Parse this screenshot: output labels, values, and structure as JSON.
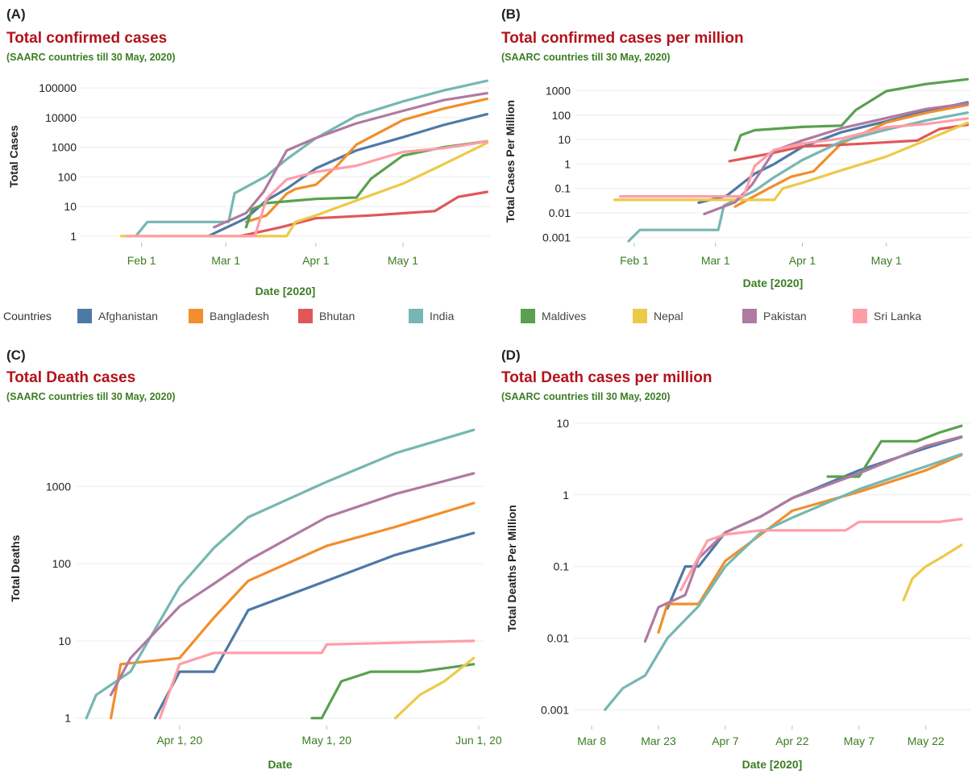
{
  "legend": {
    "title": "Countries",
    "items": [
      {
        "name": "Afghanistan",
        "color": "#4e79a7"
      },
      {
        "name": "Bangladesh",
        "color": "#f28e2b"
      },
      {
        "name": "Bhutan",
        "color": "#e15759"
      },
      {
        "name": "India",
        "color": "#76b7b2"
      },
      {
        "name": "Maldives",
        "color": "#59a14f"
      },
      {
        "name": "Nepal",
        "color": "#edc948"
      },
      {
        "name": "Pakistan",
        "color": "#b07aa1"
      },
      {
        "name": "Sri Lanka",
        "color": "#ff9da7"
      }
    ]
  },
  "panels": [
    {
      "label": "(A)",
      "title": "Total confirmed cases",
      "subtitle": "(SAARC countries till 30 May, 2020)"
    },
    {
      "label": "(B)",
      "title": "Total confirmed cases per million",
      "subtitle": "(SAARC countries till 30 May, 2020)"
    },
    {
      "label": "(C)",
      "title": "Total Death cases",
      "subtitle": "(SAARC countries till 30 May, 2020)"
    },
    {
      "label": "(D)",
      "title": "Total Death cases per million",
      "subtitle": "(SAARC countries till 30 May, 2020)"
    }
  ],
  "chart_data": [
    {
      "type": "line",
      "title": "Total confirmed cases",
      "subtitle": "(SAARC countries till 30 May, 2020)",
      "xlabel": "Date [2020]",
      "ylabel": "Total Cases",
      "yscale": "log",
      "xlim": [
        "2020-01-11",
        "2020-05-31"
      ],
      "ylim": [
        0.6,
        200000
      ],
      "x_ticks": [
        {
          "date": "2020-02-01",
          "label": "Feb 1"
        },
        {
          "date": "2020-03-01",
          "label": "Mar 1"
        },
        {
          "date": "2020-04-01",
          "label": "Apr 1"
        },
        {
          "date": "2020-05-01",
          "label": "May 1"
        }
      ],
      "y_ticks": [
        {
          "value": 1,
          "label": "1"
        },
        {
          "value": 10,
          "label": "10"
        },
        {
          "value": 100,
          "label": "100"
        },
        {
          "value": 1000,
          "label": "1000"
        },
        {
          "value": 10000,
          "label": "10000"
        },
        {
          "value": 100000,
          "label": "100000"
        }
      ],
      "series": [
        {
          "name": "Afghanistan",
          "x": [
            "2020-02-24",
            "2020-03-08",
            "2020-03-15",
            "2020-03-22",
            "2020-04-01",
            "2020-04-15",
            "2020-05-01",
            "2020-05-15",
            "2020-05-30"
          ],
          "y": [
            1,
            4,
            16,
            40,
            192,
            784,
            2171,
            5639,
            13036
          ]
        },
        {
          "name": "Bangladesh",
          "x": [
            "2020-03-08",
            "2020-03-15",
            "2020-03-22",
            "2020-03-25",
            "2020-04-01",
            "2020-04-08",
            "2020-04-15",
            "2020-05-01",
            "2020-05-15",
            "2020-05-30"
          ],
          "y": [
            3,
            5,
            27,
            39,
            54,
            218,
            1231,
            8238,
            20065,
            42844
          ]
        },
        {
          "name": "Bhutan",
          "x": [
            "2020-03-06",
            "2020-03-20",
            "2020-04-01",
            "2020-04-20",
            "2020-05-12",
            "2020-05-20",
            "2020-05-30"
          ],
          "y": [
            1,
            2,
            4,
            5,
            7,
            21,
            31
          ]
        },
        {
          "name": "India",
          "x": [
            "2020-01-30",
            "2020-02-03",
            "2020-03-02",
            "2020-03-04",
            "2020-03-15",
            "2020-03-22",
            "2020-04-01",
            "2020-04-15",
            "2020-05-01",
            "2020-05-15",
            "2020-05-30"
          ],
          "y": [
            1,
            3,
            3,
            28,
            107,
            396,
            1998,
            11439,
            35043,
            81970,
            173763
          ]
        },
        {
          "name": "Maldives",
          "x": [
            "2020-03-08",
            "2020-03-10",
            "2020-03-15",
            "2020-04-01",
            "2020-04-15",
            "2020-04-20",
            "2020-05-01",
            "2020-05-15",
            "2020-05-30"
          ],
          "y": [
            2,
            8,
            13,
            18,
            20,
            86,
            519,
            1001,
            1591
          ]
        },
        {
          "name": "Nepal",
          "x": [
            "2020-01-25",
            "2020-03-22",
            "2020-03-25",
            "2020-04-01",
            "2020-04-15",
            "2020-05-01",
            "2020-05-15",
            "2020-05-30"
          ],
          "y": [
            1,
            1,
            3,
            5,
            16,
            59,
            267,
            1401
          ]
        },
        {
          "name": "Pakistan",
          "x": [
            "2020-02-26",
            "2020-03-08",
            "2020-03-14",
            "2020-03-22",
            "2020-04-01",
            "2020-04-15",
            "2020-05-01",
            "2020-05-15",
            "2020-05-30"
          ],
          "y": [
            2,
            6,
            31,
            776,
            2039,
            6383,
            16817,
            38799,
            66457
          ]
        },
        {
          "name": "Sri Lanka",
          "x": [
            "2020-01-27",
            "2020-03-11",
            "2020-03-15",
            "2020-03-22",
            "2020-04-01",
            "2020-04-15",
            "2020-05-01",
            "2020-05-15",
            "2020-05-30"
          ],
          "y": [
            1,
            1,
            18,
            82,
            146,
            238,
            690,
            925,
            1558
          ]
        }
      ]
    },
    {
      "type": "line",
      "title": "Total confirmed cases per million",
      "subtitle": "(SAARC countries till 30 May, 2020)",
      "xlabel": "Date [2020]",
      "ylabel": "Total Cases Per Million",
      "yscale": "log",
      "xlim": [
        "2020-01-11",
        "2020-05-31"
      ],
      "ylim": [
        0.0006,
        3000
      ],
      "x_ticks": [
        {
          "date": "2020-02-01",
          "label": "Feb 1"
        },
        {
          "date": "2020-03-01",
          "label": "Mar 1"
        },
        {
          "date": "2020-04-01",
          "label": "Apr 1"
        },
        {
          "date": "2020-05-01",
          "label": "May 1"
        }
      ],
      "y_ticks": [
        {
          "value": 0.001,
          "label": "0.001"
        },
        {
          "value": 0.01,
          "label": "0.01"
        },
        {
          "value": 0.1,
          "label": "0.1"
        },
        {
          "value": 1,
          "label": "1"
        },
        {
          "value": 10,
          "label": "10"
        },
        {
          "value": 100,
          "label": "100"
        },
        {
          "value": 1000,
          "label": "1000"
        }
      ],
      "series": [
        {
          "name": "Afghanistan",
          "x": [
            "2020-02-24",
            "2020-03-05",
            "2020-03-15",
            "2020-03-22",
            "2020-04-01",
            "2020-04-15",
            "2020-05-01",
            "2020-05-15",
            "2020-05-30"
          ],
          "y": [
            0.026,
            0.05,
            0.4,
            1.0,
            5,
            20,
            56,
            145,
            335
          ]
        },
        {
          "name": "Bangladesh",
          "x": [
            "2020-03-08",
            "2020-03-20",
            "2020-03-28",
            "2020-04-05",
            "2020-04-15",
            "2020-05-01",
            "2020-05-15",
            "2020-05-30"
          ],
          "y": [
            0.018,
            0.1,
            0.3,
            0.5,
            7,
            50,
            122,
            260
          ]
        },
        {
          "name": "Bhutan",
          "x": [
            "2020-03-06",
            "2020-03-20",
            "2020-04-01",
            "2020-04-20",
            "2020-05-12",
            "2020-05-20",
            "2020-05-30"
          ],
          "y": [
            1.3,
            2.6,
            5.2,
            6.5,
            9.1,
            27,
            40
          ]
        },
        {
          "name": "India",
          "x": [
            "2020-01-30",
            "2020-02-03",
            "2020-03-02",
            "2020-03-04",
            "2020-03-15",
            "2020-03-22",
            "2020-04-01",
            "2020-04-15",
            "2020-05-01",
            "2020-05-15",
            "2020-05-30"
          ],
          "y": [
            0.0007,
            0.002,
            0.002,
            0.02,
            0.08,
            0.29,
            1.45,
            8.3,
            25.4,
            59.4,
            126
          ]
        },
        {
          "name": "Maldives",
          "x": [
            "2020-03-08",
            "2020-03-10",
            "2020-03-15",
            "2020-04-01",
            "2020-04-15",
            "2020-04-20",
            "2020-05-01",
            "2020-05-15",
            "2020-05-30"
          ],
          "y": [
            3.7,
            15,
            24,
            33,
            37,
            159,
            960,
            1852,
            2943
          ]
        },
        {
          "name": "Nepal",
          "x": [
            "2020-01-25",
            "2020-03-22",
            "2020-03-25",
            "2020-04-01",
            "2020-04-15",
            "2020-05-01",
            "2020-05-15",
            "2020-05-30"
          ],
          "y": [
            0.034,
            0.034,
            0.1,
            0.17,
            0.55,
            2,
            9.2,
            48
          ]
        },
        {
          "name": "Pakistan",
          "x": [
            "2020-02-26",
            "2020-03-08",
            "2020-03-14",
            "2020-03-22",
            "2020-04-01",
            "2020-04-15",
            "2020-05-01",
            "2020-05-15",
            "2020-05-30"
          ],
          "y": [
            0.009,
            0.027,
            0.14,
            3.5,
            9.2,
            29,
            76,
            176,
            301
          ]
        },
        {
          "name": "Sri Lanka",
          "x": [
            "2020-01-27",
            "2020-03-11",
            "2020-03-15",
            "2020-03-22",
            "2020-04-01",
            "2020-04-15",
            "2020-05-01",
            "2020-05-15",
            "2020-05-30"
          ],
          "y": [
            0.047,
            0.047,
            0.84,
            3.8,
            6.8,
            11,
            32,
            43,
            73
          ]
        }
      ]
    },
    {
      "type": "line",
      "title": "Total Death cases",
      "subtitle": "(SAARC countries till 30 May, 2020)",
      "xlabel": "Date",
      "ylabel": "Total Deaths",
      "yscale": "log",
      "xlim": [
        "2020-03-11",
        "2020-06-02"
      ],
      "ylim": [
        0.8,
        9000
      ],
      "x_ticks": [
        {
          "date": "2020-04-01",
          "label": "Apr 1, 20"
        },
        {
          "date": "2020-05-01",
          "label": "May 1, 20"
        },
        {
          "date": "2020-06-01",
          "label": "Jun 1, 20"
        }
      ],
      "y_ticks": [
        {
          "value": 1,
          "label": "1"
        },
        {
          "value": 10,
          "label": "10"
        },
        {
          "value": 100,
          "label": "100"
        },
        {
          "value": 1000,
          "label": "1000"
        }
      ],
      "series": [
        {
          "name": "Afghanistan",
          "x": [
            "2020-03-27",
            "2020-04-01",
            "2020-04-08",
            "2020-04-15",
            "2020-05-01",
            "2020-05-15",
            "2020-05-31"
          ],
          "y": [
            1,
            4,
            4,
            25,
            60,
            130,
            250
          ]
        },
        {
          "name": "Bangladesh",
          "x": [
            "2020-03-18",
            "2020-03-20",
            "2020-04-01",
            "2020-04-08",
            "2020-04-15",
            "2020-05-01",
            "2020-05-15",
            "2020-05-31"
          ],
          "y": [
            1,
            5,
            6,
            20,
            60,
            170,
            300,
            610
          ]
        },
        {
          "name": "India",
          "x": [
            "2020-03-13",
            "2020-03-15",
            "2020-03-22",
            "2020-04-01",
            "2020-04-08",
            "2020-04-15",
            "2020-05-01",
            "2020-05-15",
            "2020-05-31"
          ],
          "y": [
            1,
            2,
            4,
            50,
            160,
            400,
            1150,
            2700,
            5400
          ]
        },
        {
          "name": "Maldives",
          "x": [
            "2020-04-28",
            "2020-04-30",
            "2020-05-04",
            "2020-05-10",
            "2020-05-20",
            "2020-05-31"
          ],
          "y": [
            1,
            1,
            3,
            4,
            4,
            5
          ]
        },
        {
          "name": "Nepal",
          "x": [
            "2020-05-15",
            "2020-05-20",
            "2020-05-25",
            "2020-05-31"
          ],
          "y": [
            1,
            2,
            3,
            6
          ]
        },
        {
          "name": "Pakistan",
          "x": [
            "2020-03-18",
            "2020-03-22",
            "2020-04-01",
            "2020-04-08",
            "2020-04-15",
            "2020-05-01",
            "2020-05-15",
            "2020-05-31"
          ],
          "y": [
            2,
            6,
            28,
            55,
            110,
            400,
            800,
            1480
          ]
        },
        {
          "name": "Sri Lanka",
          "x": [
            "2020-03-28",
            "2020-04-01",
            "2020-04-08",
            "2020-04-30",
            "2020-05-01",
            "2020-05-31"
          ],
          "y": [
            1,
            5,
            7,
            7,
            9,
            10
          ]
        }
      ]
    },
    {
      "type": "line",
      "title": "Total Death cases per million",
      "subtitle": "(SAARC countries till 30 May, 2020)",
      "xlabel": "Date [2020]",
      "ylabel": "Total Deaths Per Million",
      "yscale": "log",
      "xlim": [
        "2020-03-04",
        "2020-06-01"
      ],
      "ylim": [
        0.0006,
        14
      ],
      "x_ticks": [
        {
          "date": "2020-03-08",
          "label": "Mar 8"
        },
        {
          "date": "2020-03-23",
          "label": "Mar 23"
        },
        {
          "date": "2020-04-07",
          "label": "Apr 7"
        },
        {
          "date": "2020-04-22",
          "label": "Apr 22"
        },
        {
          "date": "2020-05-07",
          "label": "May 7"
        },
        {
          "date": "2020-05-22",
          "label": "May 22"
        }
      ],
      "y_ticks": [
        {
          "value": 0.001,
          "label": "0.001"
        },
        {
          "value": 0.01,
          "label": "0.01"
        },
        {
          "value": 0.1,
          "label": "0.1"
        },
        {
          "value": 1,
          "label": "1"
        },
        {
          "value": 10,
          "label": "10"
        }
      ],
      "series": [
        {
          "name": "Afghanistan",
          "x": [
            "2020-03-25",
            "2020-03-29",
            "2020-04-01",
            "2020-04-07",
            "2020-04-15",
            "2020-04-22",
            "2020-05-07",
            "2020-05-22",
            "2020-05-30"
          ],
          "y": [
            0.026,
            0.1,
            0.1,
            0.3,
            0.5,
            0.9,
            2.2,
            4.5,
            6.4
          ]
        },
        {
          "name": "Bangladesh",
          "x": [
            "2020-03-23",
            "2020-03-25",
            "2020-04-01",
            "2020-04-07",
            "2020-04-15",
            "2020-04-22",
            "2020-05-07",
            "2020-05-22",
            "2020-05-30"
          ],
          "y": [
            0.012,
            0.03,
            0.03,
            0.12,
            0.28,
            0.6,
            1.1,
            2.2,
            3.6
          ]
        },
        {
          "name": "India",
          "x": [
            "2020-03-11",
            "2020-03-15",
            "2020-03-20",
            "2020-03-25",
            "2020-04-01",
            "2020-04-07",
            "2020-04-15",
            "2020-04-22",
            "2020-05-07",
            "2020-05-22",
            "2020-05-30"
          ],
          "y": [
            0.001,
            0.002,
            0.003,
            0.01,
            0.028,
            0.1,
            0.3,
            0.48,
            1.2,
            2.5,
            3.7
          ]
        },
        {
          "name": "Maldives",
          "x": [
            "2020-04-30",
            "2020-05-07",
            "2020-05-12",
            "2020-05-20",
            "2020-05-25",
            "2020-05-30"
          ],
          "y": [
            1.8,
            1.8,
            5.6,
            5.6,
            7.4,
            9.2
          ]
        },
        {
          "name": "Nepal",
          "x": [
            "2020-05-17",
            "2020-05-19",
            "2020-05-22",
            "2020-05-26",
            "2020-05-30"
          ],
          "y": [
            0.034,
            0.068,
            0.1,
            0.14,
            0.2
          ]
        },
        {
          "name": "Pakistan",
          "x": [
            "2020-03-20",
            "2020-03-23",
            "2020-03-29",
            "2020-04-01",
            "2020-04-07",
            "2020-04-15",
            "2020-04-22",
            "2020-05-07",
            "2020-05-22",
            "2020-05-30"
          ],
          "y": [
            0.009,
            0.027,
            0.04,
            0.13,
            0.3,
            0.5,
            0.9,
            2.0,
            4.8,
            6.5
          ]
        },
        {
          "name": "Sri Lanka",
          "x": [
            "2020-03-28",
            "2020-04-03",
            "2020-04-07",
            "2020-04-15",
            "2020-05-04",
            "2020-05-07",
            "2020-05-25",
            "2020-05-30"
          ],
          "y": [
            0.047,
            0.23,
            0.28,
            0.32,
            0.32,
            0.42,
            0.42,
            0.46
          ]
        }
      ]
    }
  ]
}
